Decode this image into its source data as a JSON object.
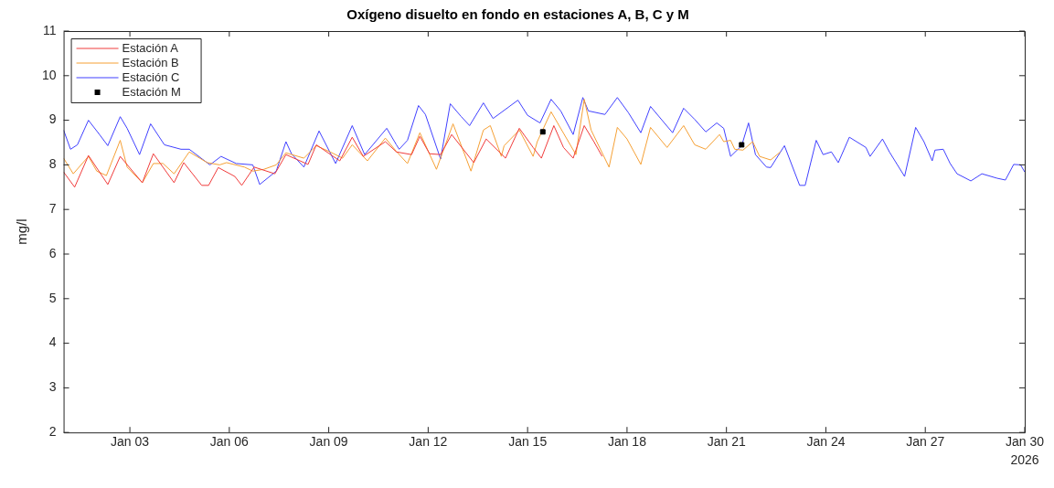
{
  "chart_data": {
    "type": "line",
    "title": "Oxígeno disuelto en fondo en estaciones A, B, C y M",
    "ylabel": "mg/l",
    "annotations": [
      "2026"
    ],
    "xlim": [
      "2026-01-01",
      "2026-01-30"
    ],
    "xticks": [
      {
        "value": "2026-01-03",
        "label": "Jan 03"
      },
      {
        "value": "2026-01-06",
        "label": "Jan 06"
      },
      {
        "value": "2026-01-09",
        "label": "Jan 09"
      },
      {
        "value": "2026-01-12",
        "label": "Jan 12"
      },
      {
        "value": "2026-01-15",
        "label": "Jan 15"
      },
      {
        "value": "2026-01-18",
        "label": "Jan 18"
      },
      {
        "value": "2026-01-21",
        "label": "Jan 21"
      },
      {
        "value": "2026-01-24",
        "label": "Jan 24"
      },
      {
        "value": "2026-01-27",
        "label": "Jan 27"
      },
      {
        "value": "2026-01-30",
        "label": "Jan 30"
      }
    ],
    "ylim": [
      2,
      11
    ],
    "yticks": [
      2,
      3,
      4,
      5,
      6,
      7,
      8,
      9,
      10,
      11
    ],
    "grid": false,
    "legend": "top left",
    "marker": "none",
    "line_style": "solid",
    "series": [
      {
        "name": "Estación A",
        "color": "#f03c3c",
        "x": [
          "2026-01-01T00:00",
          "2026-01-01T08:00",
          "2026-01-01T18:00",
          "2026-01-02T08:00",
          "2026-01-02T17:00",
          "2026-01-03T09:00",
          "2026-01-03T17:00",
          "2026-01-04T08:00",
          "2026-01-04T15:00",
          "2026-01-05T04:00",
          "2026-01-05T09:00",
          "2026-01-05T16:00",
          "2026-01-06T04:00",
          "2026-01-06T09:00",
          "2026-01-06T18:00",
          "2026-01-07T09:00",
          "2026-01-07T17:00",
          "2026-01-08T09:00",
          "2026-01-08T15:00",
          "2026-01-09T08:00",
          "2026-01-09T17:00",
          "2026-01-10T01:00",
          "2026-01-10T17:00",
          "2026-01-11T01:00",
          "2026-01-11T12:00",
          "2026-01-11T18:00",
          "2026-01-12T01:00",
          "2026-01-12T09:00",
          "2026-01-12T17:00",
          "2026-01-13T09:00",
          "2026-01-13T18:00",
          "2026-01-14T08:00",
          "2026-01-14T18:00",
          "2026-01-15T04:00",
          "2026-01-15T10:00",
          "2026-01-15T19:00",
          "2026-01-16T02:00",
          "2026-01-16T09:00",
          "2026-01-16T17:00",
          "2026-01-17T00:00",
          "2026-01-17T06:00"
        ],
        "values": [
          7.84,
          7.5,
          8.21,
          7.56,
          8.19,
          7.6,
          8.25,
          7.6,
          8.05,
          7.54,
          7.54,
          7.94,
          7.74,
          7.54,
          7.95,
          7.8,
          8.23,
          8.01,
          8.45,
          8.09,
          8.62,
          8.19,
          8.52,
          8.29,
          8.23,
          8.64,
          8.25,
          8.23,
          8.68,
          8.05,
          8.58,
          8.15,
          8.82,
          8.39,
          8.15,
          8.88,
          8.39,
          8.15,
          8.88,
          8.52,
          8.19
        ]
      },
      {
        "name": "Estación B",
        "color": "#f5a035",
        "x": [
          "2026-01-01T00:00",
          "2026-01-01T07:00",
          "2026-01-01T18:00",
          "2026-01-02T00:00",
          "2026-01-02T07:00",
          "2026-01-02T17:00",
          "2026-01-02T22:00",
          "2026-01-03T09:00",
          "2026-01-03T17:00",
          "2026-01-04T00:00",
          "2026-01-04T08:00",
          "2026-01-04T19:00",
          "2026-01-05T08:00",
          "2026-01-05T17:00",
          "2026-01-05T22:00",
          "2026-01-06T11:00",
          "2026-01-06T17:00",
          "2026-01-07T01:00",
          "2026-01-07T10:00",
          "2026-01-07T17:00",
          "2026-01-08T06:00",
          "2026-01-08T15:00",
          "2026-01-09T01:00",
          "2026-01-09T10:00",
          "2026-01-09T17:00",
          "2026-01-10T04:00",
          "2026-01-10T17:00",
          "2026-01-11T01:00",
          "2026-01-11T09:00",
          "2026-01-11T18:00",
          "2026-01-12T06:00",
          "2026-01-12T18:00",
          "2026-01-13T07:00",
          "2026-01-13T16:00",
          "2026-01-13T21:00",
          "2026-01-14T05:00",
          "2026-01-14T07:00",
          "2026-01-14T18:00",
          "2026-01-15T04:00",
          "2026-01-15T07:00",
          "2026-01-15T17:00",
          "2026-01-16T11:00",
          "2026-01-16T17:00",
          "2026-01-16T22:00",
          "2026-01-17T11:00",
          "2026-01-17T17:00",
          "2026-01-18T00:00",
          "2026-01-18T10:00",
          "2026-01-18T17:00",
          "2026-01-19T05:00",
          "2026-01-19T17:00",
          "2026-01-20T01:00",
          "2026-01-20T09:00",
          "2026-01-20T19:00",
          "2026-01-20T22:00",
          "2026-01-21T03:00",
          "2026-01-21T06:00",
          "2026-01-21T12:00",
          "2026-01-21T19:00",
          "2026-01-22T00:00",
          "2026-01-22T08:00",
          "2026-01-22T15:00"
        ],
        "values": [
          8.15,
          7.8,
          8.19,
          7.86,
          7.76,
          8.55,
          7.95,
          7.6,
          8.03,
          8.03,
          7.8,
          8.29,
          8.05,
          8.0,
          8.05,
          7.95,
          7.86,
          7.9,
          8.0,
          8.27,
          8.15,
          8.43,
          8.29,
          8.15,
          8.45,
          8.09,
          8.6,
          8.3,
          8.03,
          8.72,
          7.9,
          8.92,
          7.86,
          8.78,
          8.88,
          8.19,
          8.43,
          8.78,
          8.19,
          8.52,
          9.19,
          8.23,
          9.47,
          8.78,
          7.95,
          8.84,
          8.58,
          8.01,
          8.84,
          8.39,
          8.88,
          8.45,
          8.35,
          8.68,
          8.52,
          8.55,
          8.35,
          8.33,
          8.52,
          8.19,
          8.11,
          8.29
        ]
      },
      {
        "name": "Estación C",
        "color": "#4040ff",
        "x": [
          "2026-01-01T00:00",
          "2026-01-01T05:00",
          "2026-01-01T10:00",
          "2026-01-01T18:00",
          "2026-01-02T02:00",
          "2026-01-02T08:00",
          "2026-01-02T17:00",
          "2026-01-02T22:00",
          "2026-01-03T07:00",
          "2026-01-03T15:00",
          "2026-01-04T01:00",
          "2026-01-04T13:00",
          "2026-01-04T19:00",
          "2026-01-05T10:00",
          "2026-01-05T18:00",
          "2026-01-06T05:00",
          "2026-01-06T17:00",
          "2026-01-06T22:00",
          "2026-01-07T10:00",
          "2026-01-07T17:00",
          "2026-01-07T21:00",
          "2026-01-08T06:00",
          "2026-01-08T17:00",
          "2026-01-09T05:00",
          "2026-01-09T17:00",
          "2026-01-10T02:00",
          "2026-01-10T18:00",
          "2026-01-11T01:00",
          "2026-01-11T03:00",
          "2026-01-11T09:00",
          "2026-01-11T17:00",
          "2026-01-11T22:00",
          "2026-01-12T09:00",
          "2026-01-12T16:00",
          "2026-01-13T00:00",
          "2026-01-13T06:00",
          "2026-01-13T16:00",
          "2026-01-13T23:00",
          "2026-01-14T17:00",
          "2026-01-15T00:00",
          "2026-01-15T09:00",
          "2026-01-15T17:00",
          "2026-01-16T00:00",
          "2026-01-16T09:00",
          "2026-01-16T16:00",
          "2026-01-16T20:00",
          "2026-01-17T08:00",
          "2026-01-17T17:00",
          "2026-01-18T01:00",
          "2026-01-18T10:00",
          "2026-01-18T17:00",
          "2026-01-19T09:00",
          "2026-01-19T17:00",
          "2026-01-20T01:00",
          "2026-01-20T09:00",
          "2026-01-20T17:00",
          "2026-01-20T22:00",
          "2026-01-21T03:00",
          "2026-01-21T11:00",
          "2026-01-21T16:00",
          "2026-01-21T21:00",
          "2026-01-22T05:00",
          "2026-01-22T08:00",
          "2026-01-22T18:00",
          "2026-01-23T05:00",
          "2026-01-23T09:00",
          "2026-01-23T17:00",
          "2026-01-23T22:00",
          "2026-01-24T04:00",
          "2026-01-24T09:00",
          "2026-01-24T17:00",
          "2026-01-25T05:00",
          "2026-01-25T08:00",
          "2026-01-25T17:00",
          "2026-01-25T22:00",
          "2026-01-26T09:00",
          "2026-01-26T17:00",
          "2026-01-26T23:00",
          "2026-01-27T05:00",
          "2026-01-27T07:00",
          "2026-01-27T13:00",
          "2026-01-27T18:00",
          "2026-01-27T23:00",
          "2026-01-28T09:00",
          "2026-01-28T17:00",
          "2026-01-29T04:00",
          "2026-01-29T10:00",
          "2026-01-29T16:00",
          "2026-01-29T21:00",
          "2026-01-30T00:00"
        ],
        "values": [
          8.78,
          8.35,
          8.45,
          9.0,
          8.68,
          8.43,
          9.08,
          8.82,
          8.23,
          8.92,
          8.45,
          8.35,
          8.35,
          8.0,
          8.19,
          8.03,
          8.0,
          7.56,
          7.86,
          8.52,
          8.25,
          7.95,
          8.76,
          8.03,
          8.88,
          8.23,
          8.82,
          8.45,
          8.35,
          8.55,
          9.33,
          9.13,
          8.13,
          9.37,
          9.08,
          8.88,
          9.39,
          9.04,
          9.45,
          9.11,
          8.94,
          9.47,
          9.21,
          8.68,
          9.51,
          9.21,
          9.13,
          9.51,
          9.17,
          8.72,
          9.31,
          8.72,
          9.27,
          9.02,
          8.74,
          8.94,
          8.82,
          8.19,
          8.43,
          8.94,
          8.23,
          7.95,
          7.94,
          8.43,
          7.54,
          7.54,
          8.55,
          8.23,
          8.29,
          8.05,
          8.62,
          8.39,
          8.19,
          8.58,
          8.29,
          7.74,
          8.84,
          8.52,
          8.09,
          8.33,
          8.35,
          8.03,
          7.8,
          7.64,
          7.8,
          7.7,
          7.66,
          8.01,
          8.0,
          7.84
        ]
      },
      {
        "name": "Estación M",
        "color": "#000000",
        "type": "scatter",
        "marker": "square",
        "x": [
          "2026-01-15T11:00",
          "2026-01-21T11:00"
        ],
        "values": [
          8.74,
          8.45
        ]
      }
    ]
  }
}
